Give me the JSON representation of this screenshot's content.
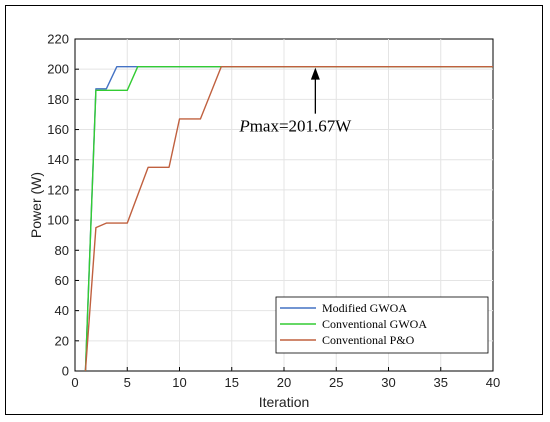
{
  "chart_data": {
    "type": "line",
    "xlabel": "Iteration",
    "ylabel": "Power (W)",
    "xlim": [
      0,
      40
    ],
    "ylim": [
      0,
      220
    ],
    "xticks": [
      0,
      5,
      10,
      15,
      20,
      25,
      30,
      35,
      40
    ],
    "yticks": [
      0,
      20,
      40,
      60,
      80,
      100,
      120,
      140,
      160,
      180,
      200,
      220
    ],
    "grid": true,
    "legend_position": "bottom-right",
    "series": [
      {
        "name": "Modified GWOA",
        "color": "#4472c4",
        "points": [
          [
            1,
            0
          ],
          [
            2,
            187
          ],
          [
            3,
            187
          ],
          [
            4,
            201.67
          ],
          [
            40,
            201.67
          ]
        ]
      },
      {
        "name": "Conventional GWOA",
        "color": "#33cc33",
        "points": [
          [
            1,
            0
          ],
          [
            2,
            186
          ],
          [
            5,
            186
          ],
          [
            6,
            201.67
          ],
          [
            40,
            201.67
          ]
        ]
      },
      {
        "name": "Conventional P&O",
        "color": "#c0603f",
        "points": [
          [
            1,
            0
          ],
          [
            2,
            95
          ],
          [
            3,
            98
          ],
          [
            5,
            98
          ],
          [
            7,
            135
          ],
          [
            9,
            135
          ],
          [
            10,
            167
          ],
          [
            12,
            167
          ],
          [
            14,
            201.67
          ],
          [
            40,
            201.67
          ]
        ]
      }
    ],
    "annotation": {
      "prefix": "P",
      "text": "max=201.67W",
      "x": 23,
      "y": 201.67
    }
  }
}
